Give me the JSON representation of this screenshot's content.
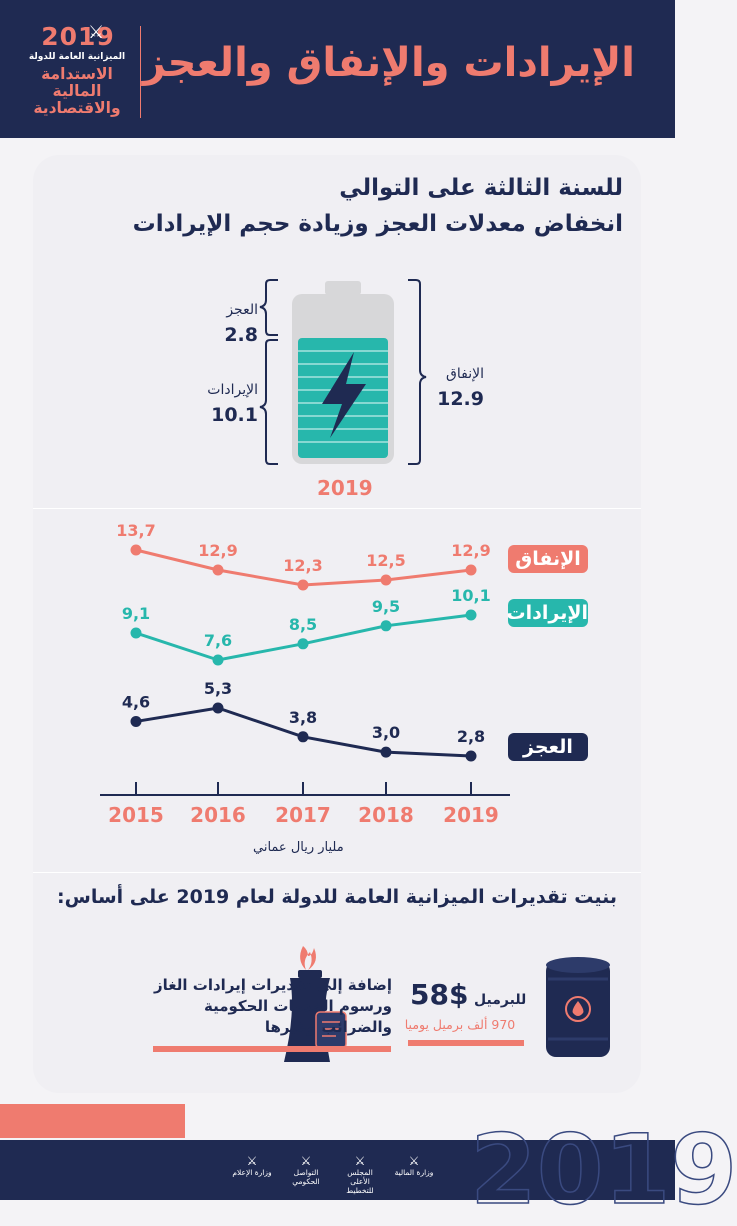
{
  "header": {
    "logo_year": "2019",
    "logo_subtitle": "الميزانية العامة للدولة",
    "logo_line1": "الاستدامة",
    "logo_line2": "المالية",
    "logo_line3": "والاقتصادية",
    "title": "الإيرادات والإنفاق والعجز"
  },
  "subtitle": {
    "line1": "للسنة الثالثة على التوالي",
    "line2": "انخفاض معدلات العجز وزيادة حجم الإيرادات"
  },
  "battery": {
    "deficit_label": "العجز",
    "deficit_value": "2.8",
    "revenue_label": "الإيرادات",
    "revenue_value": "10.1",
    "expenditure_label": "الإنفاق",
    "expenditure_value": "12.9",
    "year": "2019"
  },
  "colors": {
    "navy": "#1f2a52",
    "coral": "#ef7b6f",
    "teal": "#27b7ac"
  },
  "chart_data": {
    "type": "line",
    "x": [
      "2015",
      "2016",
      "2017",
      "2018",
      "2019"
    ],
    "series": [
      {
        "name": "الإنفاق",
        "values": [
          13.7,
          12.9,
          12.3,
          12.5,
          12.9
        ],
        "labels": [
          "13,7",
          "12,9",
          "12,3",
          "12,5",
          "12,9"
        ],
        "color": "#ef7b6f"
      },
      {
        "name": "الإيرادات",
        "values": [
          9.1,
          7.6,
          8.5,
          9.5,
          10.1
        ],
        "labels": [
          "9,1",
          "7,6",
          "8,5",
          "9,5",
          "10,1"
        ],
        "color": "#27b7ac"
      },
      {
        "name": "العجز",
        "values": [
          4.6,
          5.3,
          3.8,
          3.0,
          2.8
        ],
        "labels": [
          "4,6",
          "5,3",
          "3,8",
          "3,0",
          "2,8"
        ],
        "color": "#1f2a52"
      }
    ],
    "xlabel": "مليار ريال عماني",
    "ylabel": "",
    "grid": false
  },
  "basis": {
    "title": "بنيت تقديرات الميزانية العامة للدولة لعام 2019 على أساس:",
    "price_big": "$58",
    "price_small": "للبرميل",
    "barrels": "970 ألف برميل يوميا",
    "addition": "إضافة إلى تقديرات إيرادات الغاز ورسوم الخدمات الحكومية والضرائب وغيرها"
  },
  "footer": {
    "year": "2019",
    "ministries": [
      {
        "name": "وزارة المالية"
      },
      {
        "name": "المجلس الأعلى للتخطيط"
      },
      {
        "name": "التواصل الحكومي"
      },
      {
        "name": "وزارة الإعلام"
      }
    ]
  }
}
